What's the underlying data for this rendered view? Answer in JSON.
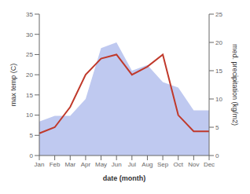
{
  "chart_data": {
    "type": "line",
    "xlabel": "date (month)",
    "ylabel": "max temp (C)",
    "y2label": "med. precipitation (kg/m2)",
    "categories": [
      "Jan",
      "Feb",
      "Mar",
      "Apr",
      "May",
      "Jun",
      "Jul",
      "Aug",
      "Sep",
      "Oct",
      "Nov",
      "Dec"
    ],
    "series": [
      {
        "type": "area",
        "axis": "y2",
        "color": "#bfc9f0",
        "values": [
          6,
          7,
          7,
          10,
          19,
          20,
          15,
          16,
          13,
          12,
          8,
          8
        ]
      },
      {
        "type": "line",
        "color": "#c0392b",
        "values": [
          5.5,
          7.0,
          12.0,
          20.0,
          24.0,
          25.0,
          20.0,
          22.0,
          25.0,
          10.0,
          6.0,
          6.0
        ]
      }
    ],
    "ylim": [
      0,
      35
    ],
    "yticks": [
      0,
      5,
      10,
      15,
      20,
      25,
      30,
      35
    ],
    "y2lim": [
      0,
      25
    ],
    "y2ticks": [
      0,
      5,
      10,
      15,
      20,
      25
    ],
    "grid": false
  }
}
